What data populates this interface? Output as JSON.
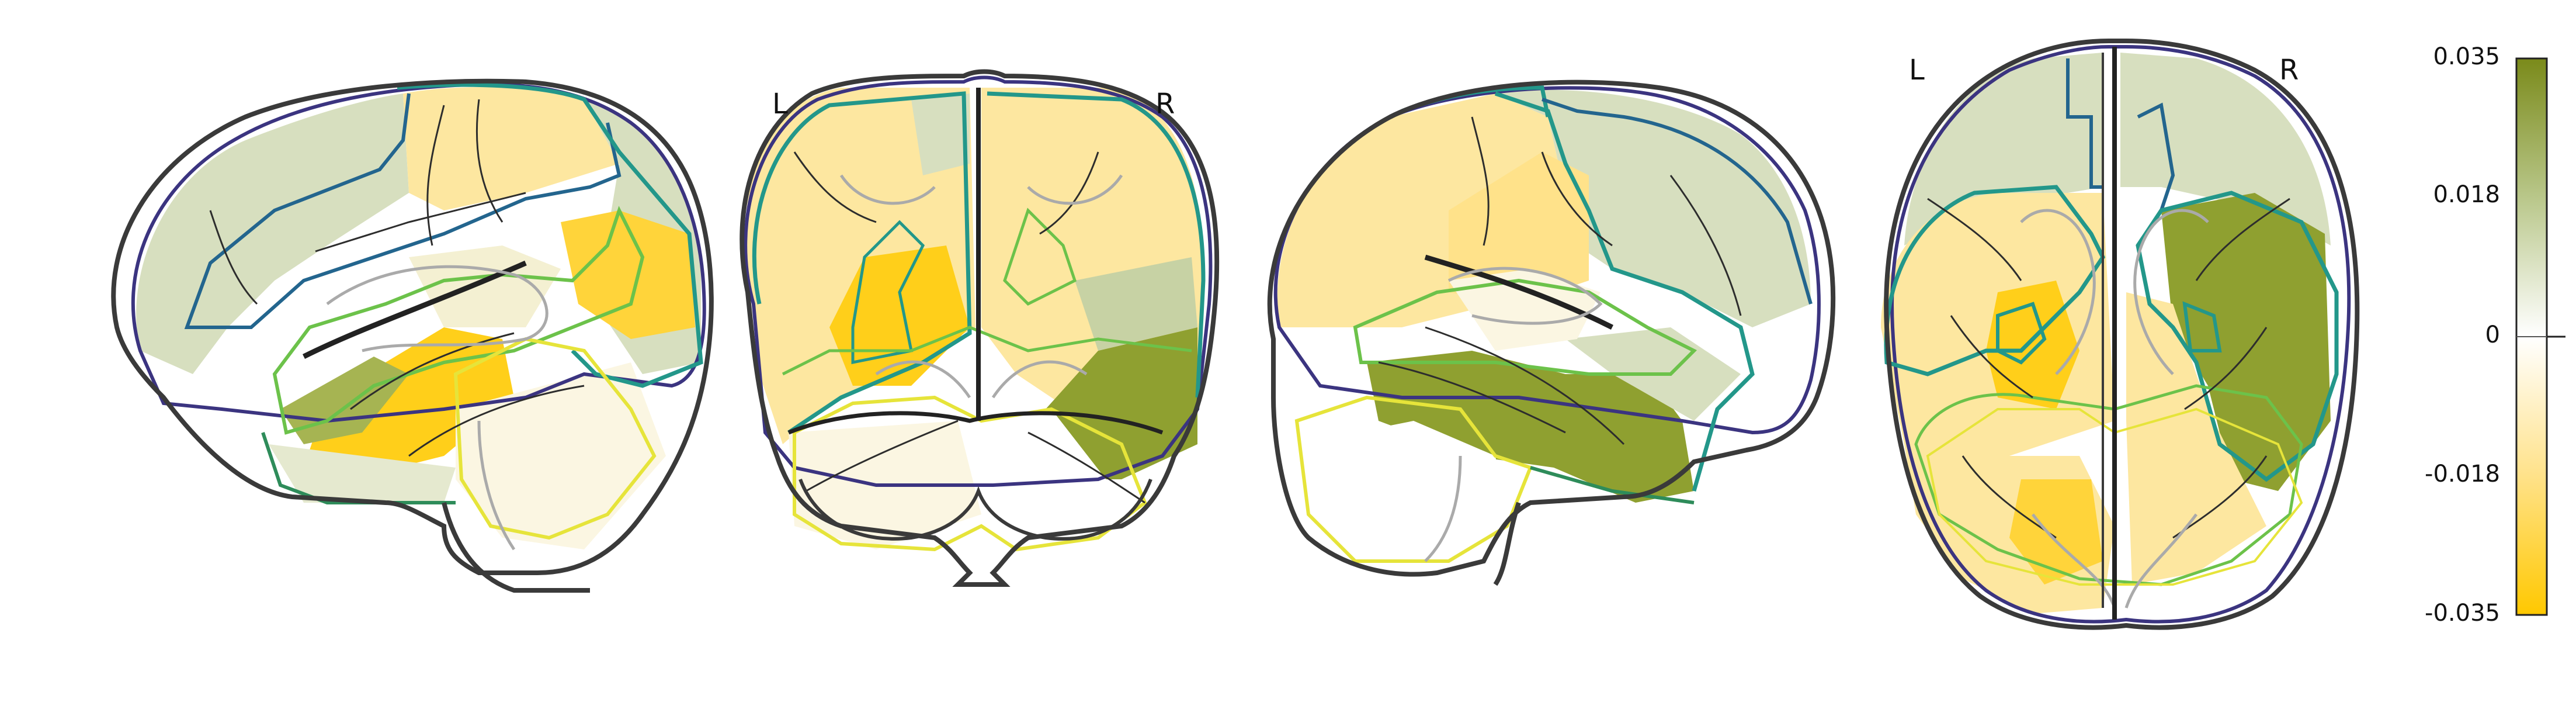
{
  "views": [
    {
      "name": "left-sagittal",
      "labels": []
    },
    {
      "name": "coronal",
      "labels": [
        "L",
        "R"
      ]
    },
    {
      "name": "right-sagittal",
      "labels": []
    },
    {
      "name": "axial",
      "labels": [
        "L",
        "R"
      ]
    }
  ],
  "orientation": {
    "coronal_left": "L",
    "coronal_right": "R",
    "axial_left": "L",
    "axial_right": "R"
  },
  "colorbar": {
    "ticks": [
      "0.035",
      "0.018",
      "0",
      "-0.018",
      "-0.035"
    ],
    "min": -0.035,
    "max": 0.035,
    "colors": {
      "top": "#7a8a1a",
      "upper": "#b9c78a",
      "middle": "#ffffff",
      "lower": "#ffe28a",
      "bottom": "#ffc800"
    }
  },
  "colors": {
    "outline": "#3a3a3a",
    "contour_purple": "#3b3480",
    "contour_blue": "#23658e",
    "contour_teal": "#23978a",
    "contour_green": "#6cc24a",
    "contour_yellow": "#e6e43a",
    "olive_strong": "#8fa030",
    "olive_light": "#d4dcb8",
    "yellow_strong": "#ffcf1a",
    "yellow_light": "#ffe89a"
  }
}
